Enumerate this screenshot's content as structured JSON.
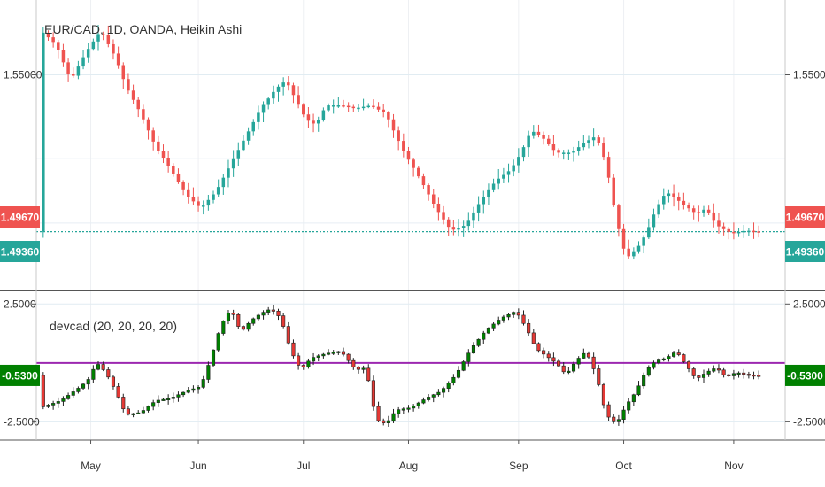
{
  "chart_data": [
    {
      "type": "candlestick",
      "title": "EUR/CAD, 1D, OANDA, Heikin Ashi",
      "ylim": [
        1.475,
        1.575
      ],
      "y_ticks": [
        {
          "value": 1.55,
          "label": "1.55000"
        }
      ],
      "price_badges": [
        {
          "label": "1.49670",
          "value": 1.4967,
          "color": "#ef5350"
        },
        {
          "label": "1.49360",
          "value": 1.4936,
          "color": "#26a69a"
        }
      ],
      "reference_line": {
        "value": 1.4936,
        "color": "#26a69a"
      },
      "x_labels": [
        "May",
        "Jun",
        "Jul",
        "Aug",
        "Sep",
        "Oct",
        "Nov"
      ],
      "x_label_positions": [
        9.5,
        31,
        52,
        73,
        95,
        116,
        138
      ],
      "x_count": 144,
      "up_color": "#26a69a",
      "down_color": "#ef5350",
      "keypoints": [
        [
          0,
          1.566
        ],
        [
          3,
          1.561
        ],
        [
          6,
          1.548
        ],
        [
          9,
          1.558
        ],
        [
          12,
          1.566
        ],
        [
          15,
          1.556
        ],
        [
          17,
          1.546
        ],
        [
          20,
          1.536
        ],
        [
          23,
          1.524
        ],
        [
          26,
          1.516
        ],
        [
          29,
          1.507
        ],
        [
          32,
          1.502
        ],
        [
          35,
          1.508
        ],
        [
          38,
          1.518
        ],
        [
          41,
          1.528
        ],
        [
          44,
          1.538
        ],
        [
          47,
          1.545
        ],
        [
          49,
          1.548
        ],
        [
          51,
          1.541
        ],
        [
          53,
          1.534
        ],
        [
          55,
          1.532
        ],
        [
          57,
          1.539
        ],
        [
          60,
          1.539
        ],
        [
          63,
          1.538
        ],
        [
          66,
          1.539
        ],
        [
          69,
          1.536
        ],
        [
          71,
          1.528
        ],
        [
          73,
          1.521
        ],
        [
          76,
          1.512
        ],
        [
          79,
          1.502
        ],
        [
          82,
          1.494
        ],
        [
          85,
          1.496
        ],
        [
          88,
          1.505
        ],
        [
          91,
          1.512
        ],
        [
          94,
          1.516
        ],
        [
          96,
          1.522
        ],
        [
          98,
          1.53
        ],
        [
          100,
          1.528
        ],
        [
          103,
          1.522
        ],
        [
          106,
          1.522
        ],
        [
          109,
          1.526
        ],
        [
          111,
          1.528
        ],
        [
          113,
          1.518
        ],
        [
          115,
          1.498
        ],
        [
          117,
          1.484
        ],
        [
          119,
          1.487
        ],
        [
          121,
          1.493
        ],
        [
          123,
          1.502
        ],
        [
          125,
          1.508
        ],
        [
          128,
          1.504
        ],
        [
          131,
          1.5
        ],
        [
          133,
          1.502
        ],
        [
          135,
          1.496
        ],
        [
          138,
          1.493
        ],
        [
          141,
          1.494
        ],
        [
          143,
          1.4936
        ]
      ]
    },
    {
      "type": "candlestick",
      "title": "devcad (20, 20, 20, 20)",
      "ylim": [
        -3.2,
        3.0
      ],
      "y_ticks": [
        {
          "value": 2.5,
          "label": "2.5000"
        },
        {
          "value": -2.5,
          "label": "-2.5000"
        }
      ],
      "price_badges": [
        {
          "label": "-0.5300",
          "value": -0.53,
          "color": "#008000"
        }
      ],
      "reference_line": {
        "value": 0,
        "color": "#9c27b0"
      },
      "x_count": 144,
      "up_color": "#008000",
      "down_color": "#e53935",
      "keypoints": [
        [
          0,
          -1.9
        ],
        [
          4,
          -1.6
        ],
        [
          8,
          -1.0
        ],
        [
          10,
          -0.6
        ],
        [
          11,
          0.05
        ],
        [
          13,
          -0.4
        ],
        [
          15,
          -1.2
        ],
        [
          17,
          -2.2
        ],
        [
          20,
          -2.1
        ],
        [
          23,
          -1.6
        ],
        [
          26,
          -1.5
        ],
        [
          29,
          -1.2
        ],
        [
          32,
          -1.0
        ],
        [
          34,
          0.2
        ],
        [
          36,
          1.6
        ],
        [
          38,
          2.3
        ],
        [
          40,
          1.3
        ],
        [
          42,
          1.8
        ],
        [
          44,
          2.1
        ],
        [
          46,
          2.3
        ],
        [
          48,
          1.9
        ],
        [
          50,
          0.5
        ],
        [
          52,
          -0.3
        ],
        [
          54,
          0.2
        ],
        [
          57,
          0.4
        ],
        [
          60,
          0.5
        ],
        [
          63,
          -0.3
        ],
        [
          65,
          -0.2
        ],
        [
          67,
          -2.4
        ],
        [
          69,
          -2.6
        ],
        [
          71,
          -2.0
        ],
        [
          74,
          -1.9
        ],
        [
          77,
          -1.5
        ],
        [
          80,
          -1.2
        ],
        [
          83,
          -0.5
        ],
        [
          86,
          0.6
        ],
        [
          89,
          1.4
        ],
        [
          92,
          1.9
        ],
        [
          95,
          2.2
        ],
        [
          97,
          1.5
        ],
        [
          99,
          0.6
        ],
        [
          101,
          0.3
        ],
        [
          103,
          0.0
        ],
        [
          105,
          -0.5
        ],
        [
          107,
          0.1
        ],
        [
          109,
          0.5
        ],
        [
          111,
          -0.5
        ],
        [
          113,
          -2.2
        ],
        [
          115,
          -2.6
        ],
        [
          117,
          -1.8
        ],
        [
          119,
          -1.2
        ],
        [
          121,
          -0.3
        ],
        [
          123,
          0.1
        ],
        [
          125,
          0.2
        ],
        [
          127,
          0.5
        ],
        [
          129,
          -0.1
        ],
        [
          131,
          -0.7
        ],
        [
          133,
          -0.4
        ],
        [
          135,
          -0.2
        ],
        [
          137,
          -0.6
        ],
        [
          139,
          -0.4
        ],
        [
          141,
          -0.5
        ],
        [
          143,
          -0.53
        ]
      ]
    }
  ]
}
